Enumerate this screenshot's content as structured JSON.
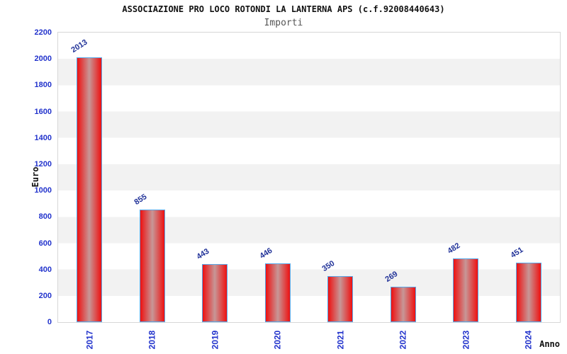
{
  "chart_data": {
    "type": "bar",
    "title": "ASSOCIAZIONE PRO LOCO ROTONDI LA LANTERNA APS (c.f.92008440643)",
    "subtitle": "Importi",
    "xlabel": "Anno",
    "ylabel": "Euro",
    "categories": [
      "2017",
      "2018",
      "2019",
      "2020",
      "2021",
      "2022",
      "2023",
      "2024"
    ],
    "values": [
      2013,
      855,
      443,
      446,
      350,
      269,
      482,
      451
    ],
    "ylim": [
      0,
      2200
    ],
    "yticks": [
      0,
      200,
      400,
      600,
      800,
      1000,
      1200,
      1400,
      1600,
      1800,
      2000,
      2200
    ],
    "grid": "alternating horizontal bands",
    "legend": "none",
    "colors": {
      "bar_fill_edge": "#ee1010",
      "bar_fill_center": "#c79797",
      "bar_border": "#56a7e8",
      "axis_tick_text": "#2233cc",
      "value_label_text": "#223399",
      "band": "#f2f2f2",
      "plot_border": "#d7d7d7",
      "title_text": "#111111",
      "subtitle_text": "#555555",
      "axis_label_text": "#111111"
    }
  }
}
